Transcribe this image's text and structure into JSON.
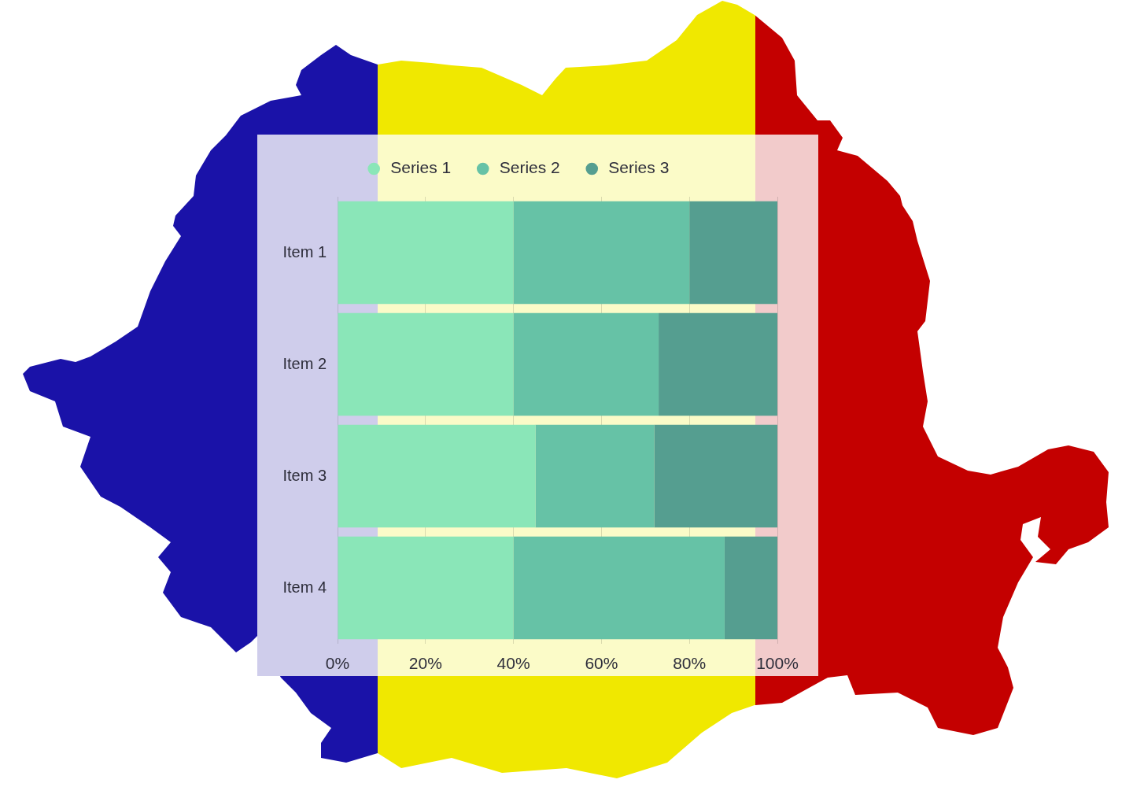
{
  "chart_data": {
    "type": "bar",
    "orientation": "horizontal",
    "stacked": true,
    "categories": [
      "Item 1",
      "Item 2",
      "Item 3",
      "Item 4"
    ],
    "series": [
      {
        "name": "Series 1",
        "color": "#8ae6b8",
        "values": [
          40,
          40,
          45,
          40
        ]
      },
      {
        "name": "Series 2",
        "color": "#66c2a6",
        "values": [
          40,
          33,
          27,
          48
        ]
      },
      {
        "name": "Series 3",
        "color": "#559e90",
        "values": [
          20,
          27,
          28,
          12
        ]
      }
    ],
    "xlim": [
      0,
      100
    ],
    "xticks": [
      {
        "value": 0,
        "label": "0%"
      },
      {
        "value": 20,
        "label": "20%"
      },
      {
        "value": 40,
        "label": "40%"
      },
      {
        "value": 60,
        "label": "60%"
      },
      {
        "value": 80,
        "label": "80%"
      },
      {
        "value": 100,
        "label": "100%"
      }
    ],
    "grid": "x",
    "legend": "top"
  }
}
